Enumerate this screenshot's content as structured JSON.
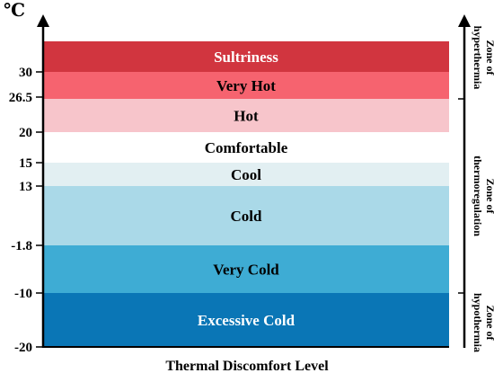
{
  "unit_label": "℃",
  "x_axis_label": "Thermal Discomfort Level",
  "ticks": [
    "30",
    "26.5",
    "20",
    "15",
    "13",
    "-1.8",
    "-10",
    "-20"
  ],
  "bands": [
    {
      "label": "Sultriness",
      "color": "#d1353f",
      "text_color": "#ffffff"
    },
    {
      "label": "Very Hot",
      "color": "#f6636f",
      "text_color": "#000000"
    },
    {
      "label": "Hot",
      "color": "#f7c5cb",
      "text_color": "#000000"
    },
    {
      "label": "Comfortable",
      "color": "#ffffff",
      "text_color": "#000000"
    },
    {
      "label": "Cool",
      "color": "#e2eff2",
      "text_color": "#000000"
    },
    {
      "label": "Cold",
      "color": "#aad9e8",
      "text_color": "#000000"
    },
    {
      "label": "Very Cold",
      "color": "#3eacd4",
      "text_color": "#000000"
    },
    {
      "label": "Excessive Cold",
      "color": "#0a76b6",
      "text_color": "#ffffff"
    }
  ],
  "zones": [
    {
      "label": "Zone of hyperthermia"
    },
    {
      "label": "Zone of thermoregulation"
    },
    {
      "label": "Zone of hypothermia"
    }
  ]
}
